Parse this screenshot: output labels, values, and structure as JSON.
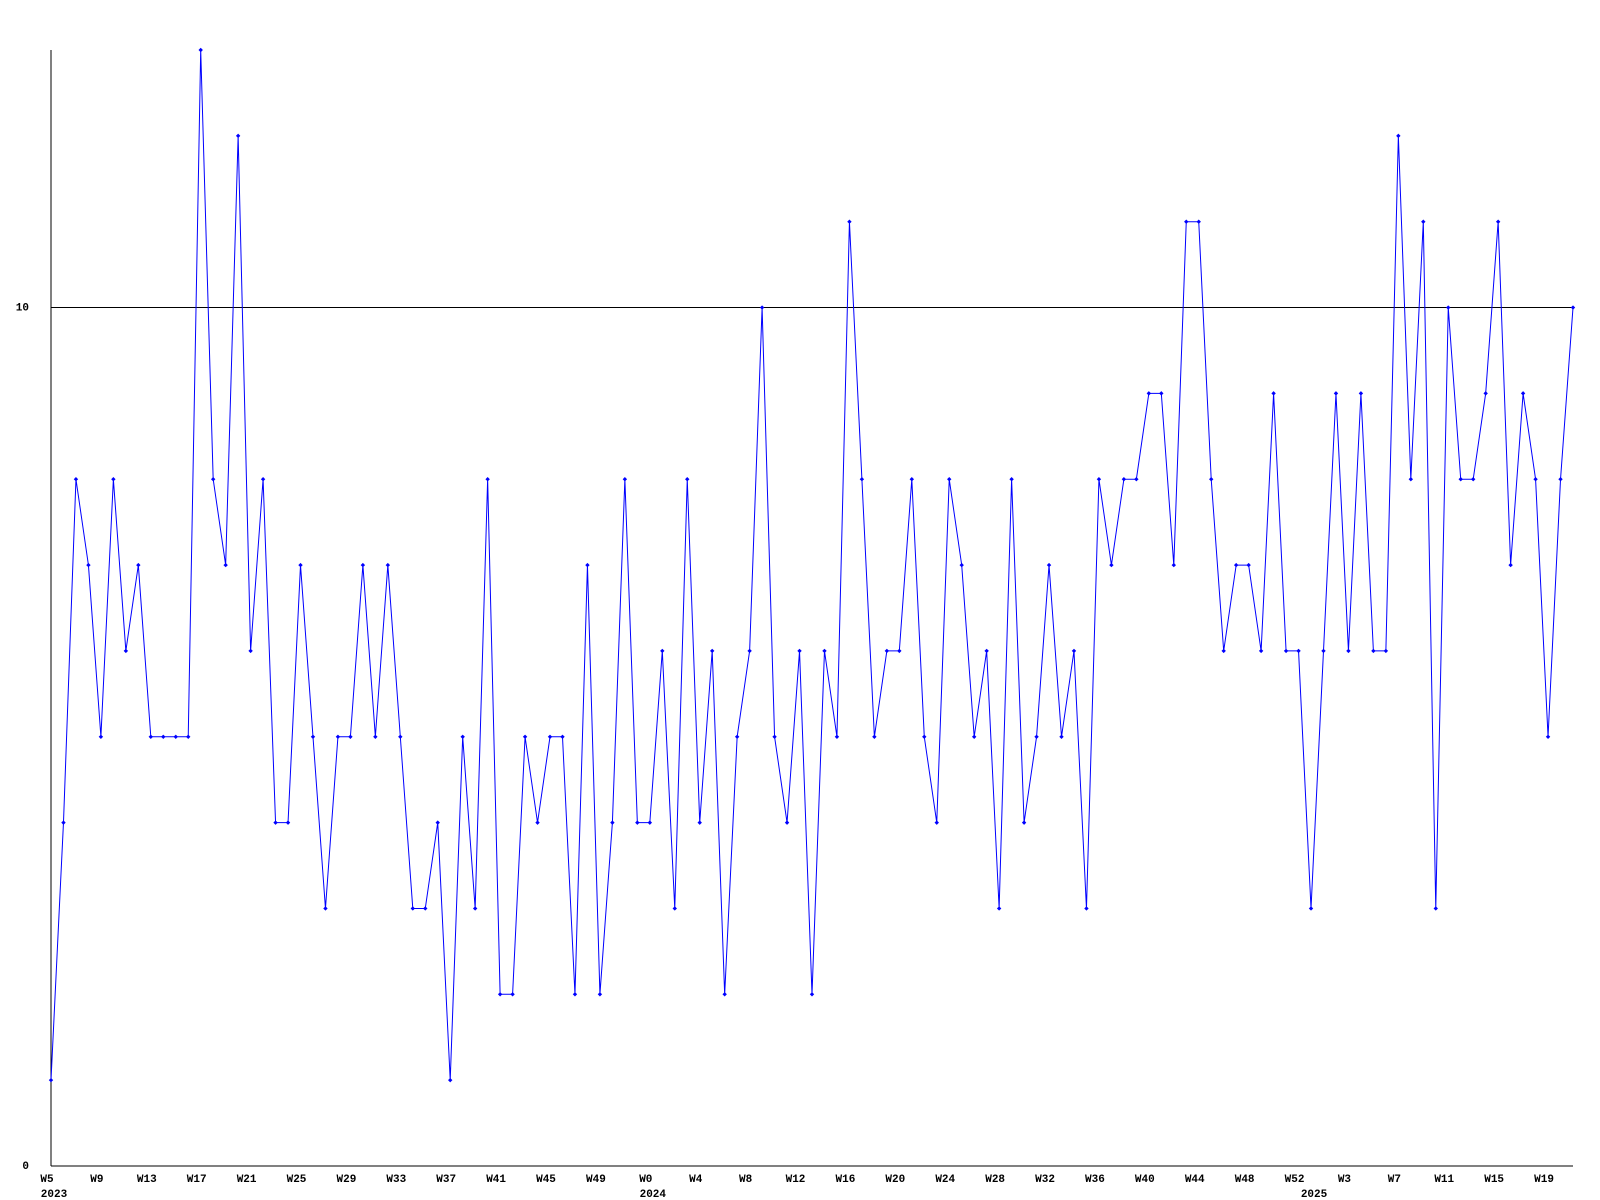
{
  "chart_data": {
    "type": "line",
    "categories": [
      "W5",
      null,
      null,
      null,
      "W9",
      null,
      null,
      null,
      "W13",
      null,
      null,
      null,
      "W17",
      null,
      null,
      null,
      "W21",
      null,
      null,
      null,
      "W25",
      null,
      null,
      null,
      "W29",
      null,
      null,
      null,
      "W33",
      null,
      null,
      null,
      "W37",
      null,
      null,
      null,
      "W41",
      null,
      null,
      null,
      "W45",
      null,
      null,
      null,
      "W49",
      null,
      null,
      null,
      "W0",
      null,
      null,
      null,
      "W4",
      null,
      null,
      null,
      "W8",
      null,
      null,
      null,
      "W12",
      null,
      null,
      null,
      "W16",
      null,
      null,
      null,
      "W20",
      null,
      null,
      null,
      "W24",
      null,
      null,
      null,
      "W28",
      null,
      null,
      null,
      "W32",
      null,
      null,
      null,
      "W36",
      null,
      null,
      null,
      "W40",
      null,
      null,
      null,
      "W44",
      null,
      null,
      null,
      "W48",
      null,
      null,
      null,
      "W52",
      null,
      null,
      null,
      "W3",
      null,
      null,
      null,
      "W7",
      null,
      null,
      null,
      "W11",
      null,
      null,
      null,
      "W15",
      null,
      null,
      null,
      "W19",
      null,
      null
    ],
    "year_labels": [
      "2023",
      null,
      null,
      null,
      null,
      null,
      null,
      null,
      null,
      null,
      null,
      null,
      null,
      null,
      null,
      null,
      null,
      null,
      null,
      null,
      null,
      null,
      null,
      null,
      null,
      null,
      null,
      null,
      null,
      null,
      null,
      null,
      null,
      null,
      null,
      null,
      null,
      null,
      null,
      null,
      null,
      null,
      null,
      null,
      null,
      null,
      null,
      null,
      "2024",
      null,
      null,
      null,
      null,
      null,
      null,
      null,
      null,
      null,
      null,
      null,
      null,
      null,
      null,
      null,
      null,
      null,
      null,
      null,
      null,
      null,
      null,
      null,
      null,
      null,
      null,
      null,
      null,
      null,
      null,
      null,
      null,
      null,
      null,
      null,
      null,
      null,
      null,
      null,
      null,
      null,
      null,
      null,
      null,
      null,
      null,
      null,
      null,
      null,
      null,
      null,
      null,
      "2025",
      null,
      null,
      null,
      null,
      null,
      null,
      null,
      null,
      null,
      null,
      null,
      null,
      null,
      null,
      null,
      null,
      null,
      null,
      null,
      null
    ],
    "series": [
      {
        "color": "#0000ff",
        "values": [
          1,
          4,
          8,
          7,
          5,
          8,
          6,
          7,
          5,
          5,
          5,
          5,
          13,
          8,
          7,
          12,
          6,
          8,
          4,
          4,
          7,
          5,
          3,
          5,
          5,
          7,
          5,
          7,
          5,
          3,
          3,
          4,
          1,
          5,
          3,
          8,
          2,
          2,
          5,
          4,
          5,
          5,
          2,
          7,
          2,
          4,
          8,
          4,
          4,
          6,
          3,
          8,
          4,
          6,
          2,
          5,
          6,
          10,
          5,
          4,
          6,
          2,
          6,
          5,
          11,
          8,
          5,
          6,
          6,
          8,
          5,
          4,
          8,
          7,
          5,
          6,
          3,
          8,
          4,
          5,
          7,
          5,
          6,
          3,
          8,
          7,
          8,
          8,
          9,
          9,
          7,
          11,
          11,
          8,
          6,
          7,
          7,
          6,
          9,
          6,
          6,
          3,
          6,
          9,
          6,
          9,
          6,
          6,
          12,
          8,
          11,
          3,
          10,
          8,
          8,
          9,
          11,
          7,
          9,
          8,
          5,
          8,
          10
        ]
      }
    ],
    "ylim": [
      0,
      13
    ],
    "yticks": [
      0,
      10
    ],
    "grid": true
  }
}
